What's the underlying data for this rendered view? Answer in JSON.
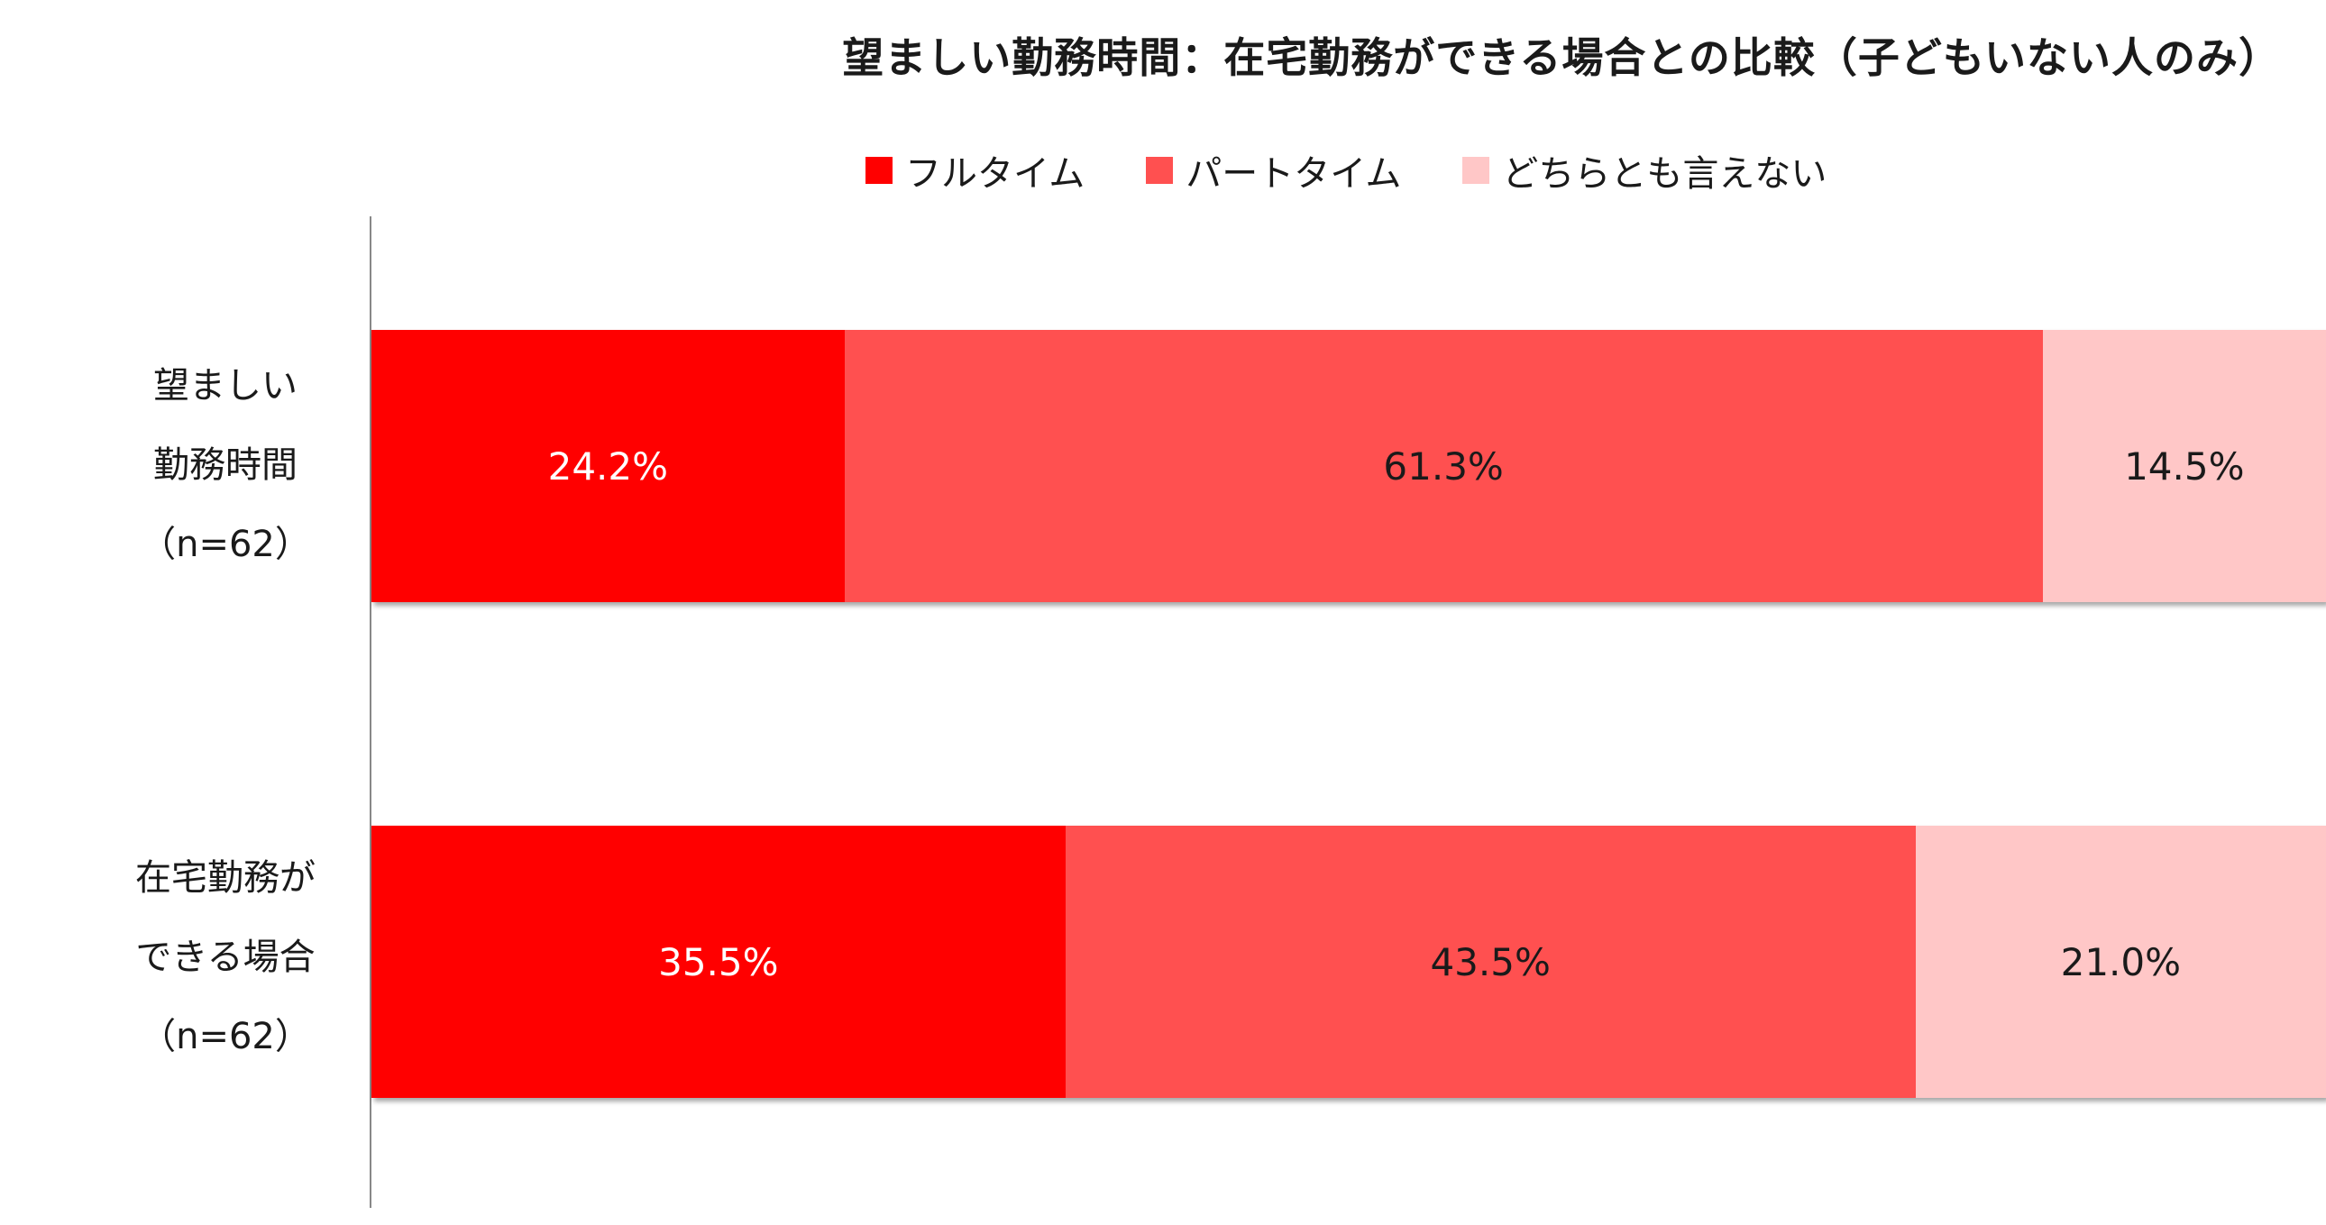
{
  "title": "望ましい勤務時間：在宅勤務ができる場合との比較（子どもいない人のみ）",
  "legend": [
    {
      "label": "フルタイム",
      "color": "#ff0000"
    },
    {
      "label": "パートタイム",
      "color": "#ff5050"
    },
    {
      "label": "どちらとも言えない",
      "color": "#ffc7c7"
    }
  ],
  "rows": [
    {
      "label_lines": [
        "望ましい",
        "勤務時間",
        "（n=62）"
      ]
    },
    {
      "label_lines": [
        "在宅勤務が",
        "できる場合",
        "（n=62）"
      ]
    }
  ],
  "chart_data": {
    "type": "bar",
    "orientation": "horizontal",
    "stacked": true,
    "percent": true,
    "title": "望ましい勤務時間：在宅勤務ができる場合との比較（子どもいない人のみ）",
    "categories": [
      "望ましい勤務時間（n=62）",
      "在宅勤務ができる場合（n=62）"
    ],
    "series": [
      {
        "name": "フルタイム",
        "values": [
          24.2,
          35.5
        ],
        "labels": [
          "24.2%",
          "35.5%"
        ],
        "color": "#ff0000",
        "label_color": "#ffffff"
      },
      {
        "name": "パートタイム",
        "values": [
          61.3,
          43.5
        ],
        "labels": [
          "61.3%",
          "43.5%"
        ],
        "color": "#ff5050",
        "label_color": "#1a1a1a"
      },
      {
        "name": "どちらとも言えない",
        "values": [
          14.5,
          21.0
        ],
        "labels": [
          "14.5%",
          "21.0%"
        ],
        "color": "#ffc7c7",
        "label_color": "#1a1a1a"
      }
    ],
    "legend_position": "top",
    "grid": false
  }
}
